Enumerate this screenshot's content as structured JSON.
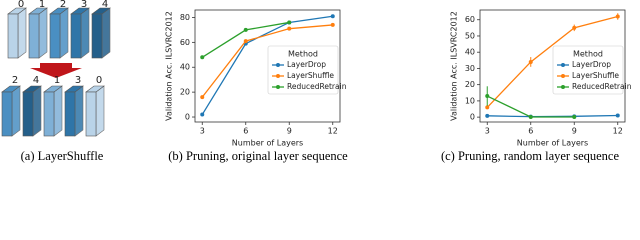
{
  "diagram": {
    "caption": "(a) LayerShuffle",
    "top_labels": [
      "0",
      "1",
      "2",
      "3",
      "4"
    ],
    "bottom_labels": [
      "2",
      "4",
      "1",
      "3",
      "0"
    ],
    "layer_colors": [
      "#b9d3e8",
      "#7fb0d6",
      "#4a8fc2",
      "#2f75a8",
      "#245f8a"
    ],
    "arrow_color": "#c0161b"
  },
  "chart_data": [
    {
      "type": "line",
      "caption": "(b) Pruning, original layer sequence",
      "xlabel": "Number of Layers",
      "ylabel": "Validation Acc. ILSVRC2012",
      "x": [
        3,
        6,
        9,
        12
      ],
      "xlim": [
        2.5,
        12.5
      ],
      "xticks": [
        3,
        6,
        9,
        12
      ],
      "ylim": [
        -4,
        86
      ],
      "yticks": [
        0,
        20,
        40,
        60,
        80
      ],
      "legend_title": "Method",
      "series": [
        {
          "name": "LayerDrop",
          "color": "#1f77b4",
          "values": [
            2,
            59,
            76,
            81
          ]
        },
        {
          "name": "LayerShuffle",
          "color": "#ff7f0e",
          "values": [
            16,
            61,
            71,
            74
          ]
        },
        {
          "name": "ReducedRetrain",
          "color": "#2ca02c",
          "values": [
            48,
            70,
            76,
            null
          ]
        }
      ]
    },
    {
      "type": "line",
      "caption": "(c) Pruning, random layer sequence",
      "xlabel": "Number of Layers",
      "ylabel": "Validation Acc. ILSVRC2012",
      "x": [
        3,
        6,
        9,
        12
      ],
      "xlim": [
        2.5,
        12.5
      ],
      "xticks": [
        3,
        6,
        9,
        12
      ],
      "ylim": [
        -3,
        66
      ],
      "yticks": [
        0,
        10,
        20,
        30,
        40,
        50,
        60
      ],
      "legend_title": "Method",
      "series": [
        {
          "name": "LayerDrop",
          "color": "#1f77b4",
          "values": [
            0.8,
            0.3,
            0.5,
            1
          ],
          "errors": [
            0.3,
            0.2,
            0.3,
            0.3
          ]
        },
        {
          "name": "LayerShuffle",
          "color": "#ff7f0e",
          "values": [
            6,
            34,
            55,
            62
          ],
          "errors": [
            1,
            3,
            2,
            2
          ]
        },
        {
          "name": "ReducedRetrain",
          "color": "#2ca02c",
          "values": [
            13,
            0.1,
            0.1,
            null
          ],
          "errors": [
            6,
            0.1,
            0.1,
            null
          ]
        }
      ]
    }
  ]
}
